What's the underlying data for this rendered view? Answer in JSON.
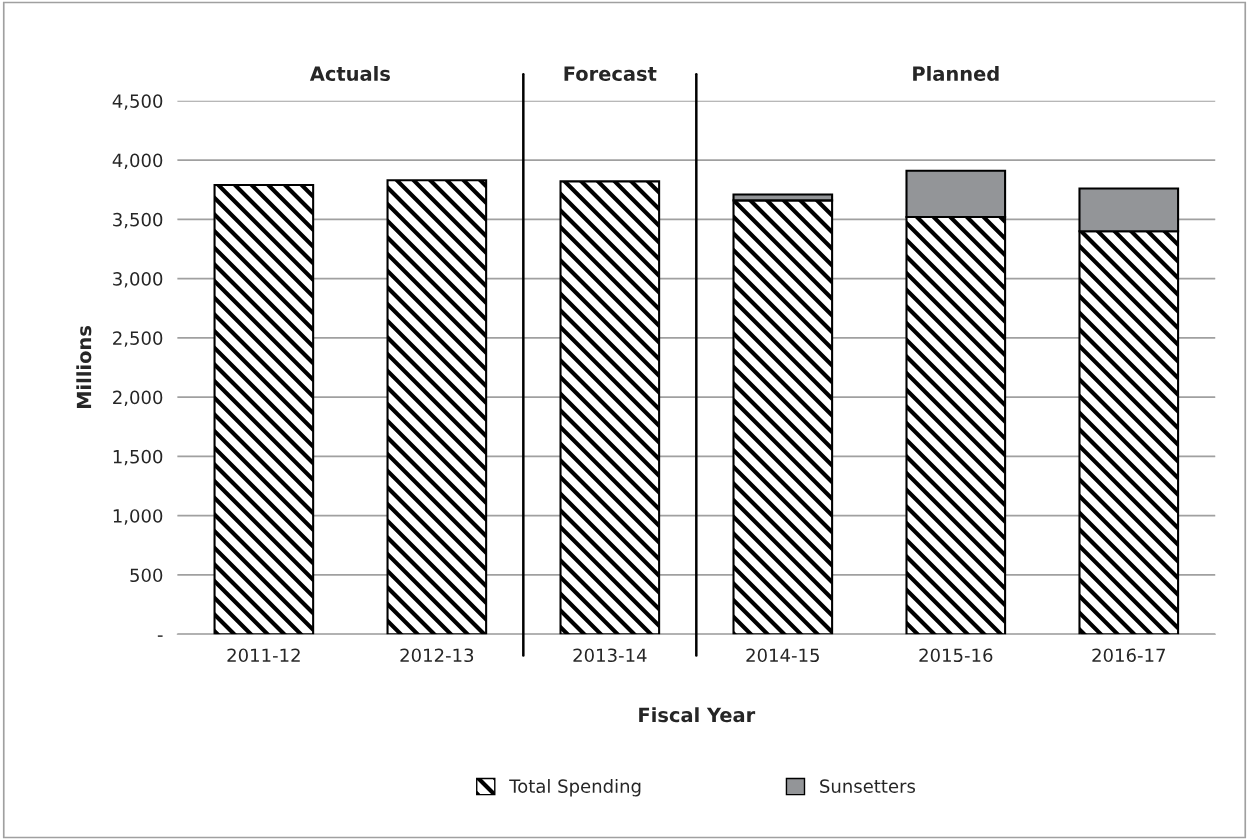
{
  "chart_data": {
    "type": "bar",
    "stacked": true,
    "xlabel": "Fiscal Year",
    "ylabel": "Millions",
    "categories": [
      "2011-12",
      "2012-13",
      "2013-14",
      "2014-15",
      "2015-16",
      "2016-17"
    ],
    "series": [
      {
        "name": "Total Spending",
        "color": "#000000",
        "values": [
          3790,
          3830,
          3820,
          3660,
          3520,
          3400
        ]
      },
      {
        "name": "Sunsetters",
        "color": "#939598",
        "values": [
          null,
          null,
          null,
          50,
          390,
          360
        ]
      }
    ],
    "ylim": [
      0,
      4500
    ],
    "yticks": [
      {
        "value": 0,
        "label": "-"
      },
      500,
      {
        "value": 1000,
        "label": "1,000"
      },
      {
        "value": 1500,
        "label": "1,500"
      },
      {
        "value": 2000,
        "label": "2,000"
      },
      {
        "value": 2500,
        "label": "2,500"
      },
      {
        "value": 3000,
        "label": "3,000"
      },
      {
        "value": 3500,
        "label": "3,500"
      },
      {
        "value": 4000,
        "label": "4,000"
      },
      {
        "value": 4500,
        "label": "4,500"
      }
    ],
    "grid": "y",
    "legend": "bottom",
    "annotations": [
      "Actuals",
      "Forecast",
      "Planned"
    ]
  }
}
